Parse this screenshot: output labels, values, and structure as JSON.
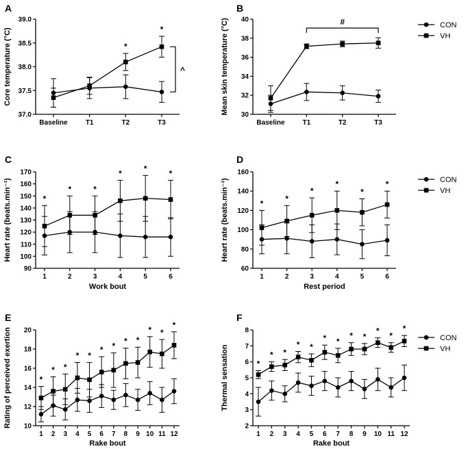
{
  "legend_labels": [
    "CON",
    "VH"
  ],
  "chart_data": [
    {
      "panel": "A",
      "type": "line",
      "categories": [
        "Baseline",
        "T1",
        "T2",
        "T3"
      ],
      "ylabel": "Core temperature (°C)",
      "xlabel": "",
      "ylim": [
        37.0,
        39.0
      ],
      "yticks": [
        "37.0",
        "37.5",
        "38.0",
        "38.5",
        "39.0"
      ],
      "series": [
        {
          "name": "CON",
          "values": [
            37.45,
            37.55,
            37.58,
            37.47
          ],
          "errors": [
            0.3,
            0.22,
            0.25,
            0.22
          ]
        },
        {
          "name": "VH",
          "values": [
            37.35,
            37.6,
            38.1,
            38.42
          ],
          "errors": [
            0.2,
            0.18,
            0.18,
            0.22
          ]
        }
      ],
      "star_labels": [
        "*",
        "*"
      ],
      "bracket_label": "^"
    },
    {
      "panel": "B",
      "type": "line",
      "categories": [
        "Baseline",
        "T1",
        "T2",
        "T3"
      ],
      "ylabel": "Mean skin temperature (°C)",
      "xlabel": "",
      "ylim": [
        30,
        40
      ],
      "yticks": [
        "30",
        "32",
        "34",
        "36",
        "38",
        "40"
      ],
      "series": [
        {
          "name": "CON",
          "values": [
            31.1,
            32.35,
            32.25,
            31.9
          ],
          "errors": [
            0.9,
            0.9,
            0.75,
            0.65
          ]
        },
        {
          "name": "VH",
          "values": [
            31.7,
            37.15,
            37.4,
            37.5
          ],
          "errors": [
            1.3,
            0.25,
            0.3,
            0.55
          ]
        }
      ],
      "bracket_label": "#"
    },
    {
      "panel": "C",
      "type": "line",
      "categories": [
        "1",
        "2",
        "3",
        "4",
        "5",
        "6"
      ],
      "ylabel": "Heart rate (beats.min⁻¹)",
      "xlabel": "Work bout",
      "ylim": [
        90,
        170
      ],
      "yticks": [
        "90",
        "100",
        "110",
        "120",
        "130",
        "140",
        "150",
        "160",
        "170"
      ],
      "series": [
        {
          "name": "CON",
          "values": [
            117,
            120,
            120,
            117,
            116,
            116
          ],
          "errors": [
            16,
            17,
            17,
            18,
            17,
            16
          ]
        },
        {
          "name": "VH",
          "values": [
            125,
            134,
            134,
            146,
            148,
            147
          ],
          "errors": [
            17,
            16,
            16,
            17,
            19,
            16
          ]
        }
      ],
      "star_labels": [
        "*",
        "*",
        "*",
        "*",
        "*",
        "*"
      ]
    },
    {
      "panel": "D",
      "type": "line",
      "categories": [
        "1",
        "2",
        "3",
        "4",
        "5",
        "6"
      ],
      "ylabel": "Heart rate (beats.min⁻¹)",
      "xlabel": "Rest period",
      "ylim": [
        60,
        160
      ],
      "yticks": [
        "60",
        "80",
        "100",
        "120",
        "140",
        "160"
      ],
      "series": [
        {
          "name": "CON",
          "values": [
            90,
            91,
            88,
            90,
            85,
            89
          ],
          "errors": [
            15,
            16,
            17,
            16,
            15,
            16
          ]
        },
        {
          "name": "VH",
          "values": [
            102,
            109,
            115,
            120,
            118,
            126
          ],
          "errors": [
            18,
            16,
            18,
            20,
            14,
            14
          ]
        }
      ],
      "star_labels": [
        "*",
        "*",
        "*",
        "*",
        "*",
        "*"
      ]
    },
    {
      "panel": "E",
      "type": "line",
      "categories": [
        "1",
        "2",
        "3",
        "4",
        "5",
        "6",
        "7",
        "8",
        "9",
        "10",
        "11",
        "12"
      ],
      "ylabel": "Rating of perceived exertion",
      "xlabel": "Rake bout",
      "ylim": [
        10,
        20
      ],
      "yticks": [
        "10",
        "12",
        "14",
        "16",
        "18",
        "20"
      ],
      "series": [
        {
          "name": "CON",
          "values": [
            11.2,
            12.1,
            11.7,
            12.7,
            12.6,
            13.1,
            12.7,
            13.2,
            12.7,
            13.4,
            12.7,
            13.6
          ],
          "errors": [
            0.8,
            1.1,
            1.1,
            1.2,
            1.2,
            1.2,
            1.0,
            1.2,
            1.1,
            1.2,
            1.3,
            1.3
          ]
        },
        {
          "name": "VH",
          "values": [
            12.9,
            13.6,
            13.8,
            15.0,
            14.8,
            15.6,
            15.8,
            16.5,
            16.6,
            17.7,
            17.5,
            18.4
          ],
          "errors": [
            1.2,
            1.5,
            1.6,
            1.6,
            1.8,
            1.6,
            1.8,
            1.6,
            1.6,
            1.6,
            1.5,
            1.4
          ]
        }
      ],
      "star_labels": [
        "*",
        "*",
        "*",
        "*",
        "*",
        "*",
        "*",
        "*",
        "*",
        "*",
        "*",
        "*"
      ]
    },
    {
      "panel": "F",
      "type": "line",
      "categories": [
        "1",
        "2",
        "3",
        "4",
        "5",
        "6",
        "7",
        "8",
        "9",
        "10",
        "11",
        "12"
      ],
      "ylabel": "Thermal sensation",
      "xlabel": "Rake bout",
      "ylim": [
        2,
        8
      ],
      "yticks": [
        "2",
        "3",
        "4",
        "5",
        "6",
        "7",
        "8"
      ],
      "series": [
        {
          "name": "CON",
          "values": [
            3.5,
            4.2,
            4.0,
            4.7,
            4.5,
            4.8,
            4.4,
            4.8,
            4.3,
            4.9,
            4.4,
            5.0
          ],
          "errors": [
            0.9,
            0.6,
            0.5,
            0.6,
            0.6,
            0.6,
            0.6,
            0.6,
            0.6,
            0.7,
            0.6,
            0.8
          ]
        },
        {
          "name": "VH",
          "values": [
            5.2,
            5.7,
            5.8,
            6.3,
            6.1,
            6.6,
            6.4,
            6.8,
            6.8,
            7.2,
            6.9,
            7.3
          ],
          "errors": [
            0.25,
            0.3,
            0.35,
            0.35,
            0.4,
            0.45,
            0.45,
            0.4,
            0.35,
            0.3,
            0.3,
            0.35
          ]
        }
      ],
      "star_labels": [
        "*",
        "*",
        "*",
        "*",
        "*",
        "*",
        "*",
        "*",
        "*",
        "*",
        "*",
        "*"
      ]
    }
  ]
}
